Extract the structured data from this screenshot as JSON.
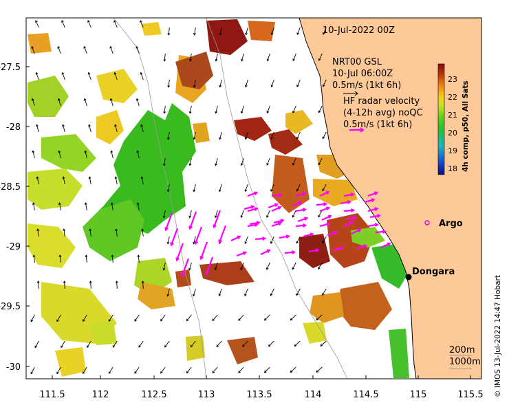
{
  "title": "10-Jul-2022 00Z",
  "nrt_block": {
    "line1": "NRT00 GSL",
    "line2": "10-Jul 06:00Z",
    "line3": "0.5m/s (1kt 6h)"
  },
  "hf_block": {
    "line1": "HF radar velocity",
    "line2": "(4-12h avg) noQC",
    "line3": "0.5m/s (1kt 6h)"
  },
  "colorbar": {
    "label": "4h comp, p50, All Sats",
    "ticks": [
      "23",
      "22",
      "21",
      "20",
      "19",
      "18"
    ]
  },
  "places": {
    "argo": "Argo",
    "dongara": "Dongara"
  },
  "depth_legend": [
    "200m",
    "1000m"
  ],
  "credit": "© IMOS 13-Jul-2022 14:47 Hobart",
  "axes": {
    "x_ticks": [
      "111.5",
      "112",
      "112.5",
      "113",
      "113.5",
      "114",
      "114.5",
      "115",
      "115.5"
    ],
    "y_ticks": [
      "-27.5",
      "-28",
      "-28.5",
      "-29",
      "-29.5",
      "-30"
    ]
  },
  "colors": {
    "land": "#fdc998",
    "hf_vector": "#ff00ff",
    "argo_marker": "#e000e0"
  }
}
